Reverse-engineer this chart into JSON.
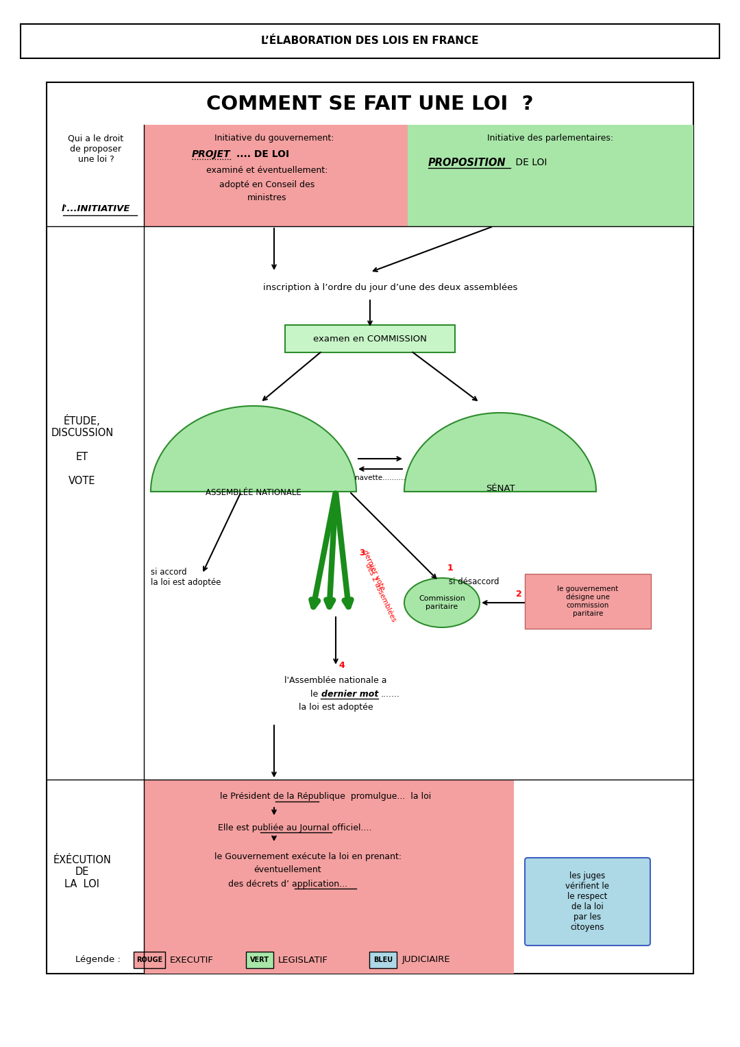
{
  "title_header": "L’ÉLABORATION DES LOIS EN FRANCE",
  "main_title": "COMMENT SE FAIT UNE LOI  ?",
  "bg_color": "#ffffff",
  "red_color": "#f4a0a0",
  "green_color": "#a8e6a8",
  "green_box_color": "#c8f5c8",
  "blue_color": "#add8e6",
  "dark_green": "#1a8c1a",
  "an_text": "ASSEMBLÉE NATIONALE",
  "senat_text": "SÉNAT",
  "navette_text": "navette..........",
  "si_accord_text": "si accord\nla loi est adoptée",
  "si_desaccord_text": "si désaccord",
  "commission_paritaire_text": "Commission\nparitaire",
  "gouv_designe_text": "le gouvernement\ndésigne une\ncommission\nparitaire",
  "promulgue_text": "le Président de la République  promulgue...  la loi",
  "publie_text": "Elle est publiée au Journal officiel....",
  "gouvernement_execute1": "le Gouvernement exécute la loi en prenant:",
  "gouvernement_execute2": "éventuellement",
  "gouvernement_execute3": "des décrets d’ application...",
  "juges_text": "les juges\nvérifient le\nle respect\nde la loi\npar les\ncitoyens",
  "inscription_text": "inscription à l’ordre du jour d’une des deux assemblées"
}
